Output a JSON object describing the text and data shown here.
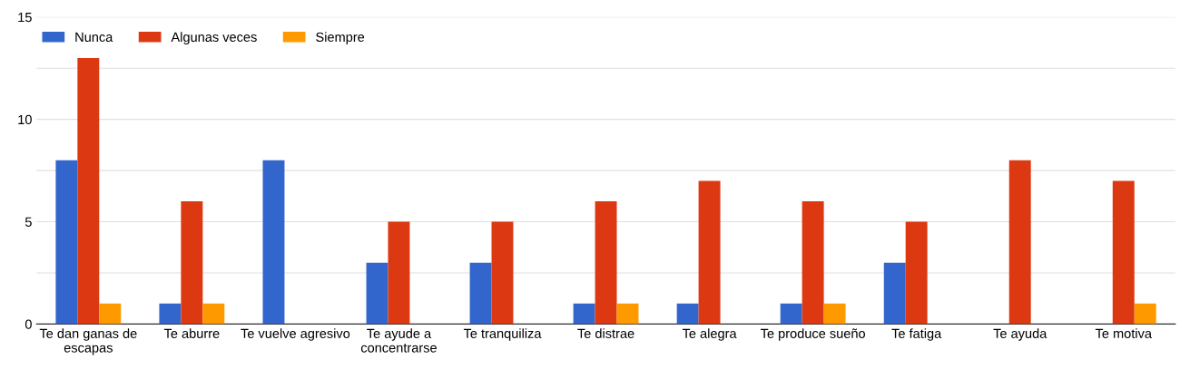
{
  "chart_data": {
    "type": "bar",
    "categories": [
      "Te dan ganas de\nescapas",
      "Te aburre",
      "Te vuelve agresivo",
      "Te ayude a\nconcentrarse",
      "Te tranquiliza",
      "Te distrae",
      "Te alegra",
      "Te produce sueño",
      "Te fatiga",
      "Te ayuda",
      "Te motiva"
    ],
    "series": [
      {
        "name": "Nunca",
        "color": "#3366cc",
        "values": [
          8,
          1,
          8,
          3,
          3,
          1,
          1,
          1,
          3,
          0,
          0
        ]
      },
      {
        "name": "Algunas veces",
        "color": "#dc3912",
        "values": [
          13,
          6,
          0,
          5,
          5,
          6,
          7,
          6,
          5,
          8,
          7
        ]
      },
      {
        "name": "Siempre",
        "color": "#ff9900",
        "values": [
          1,
          1,
          0,
          0,
          0,
          1,
          0,
          1,
          0,
          0,
          1
        ]
      }
    ],
    "ylim": [
      0,
      15
    ],
    "yticks": [
      0,
      {
        "value": 2.5,
        "label": null
      },
      5,
      {
        "value": 7.5,
        "label": null
      },
      10,
      {
        "value": 12.5,
        "label": null
      },
      15
    ],
    "grid": "y",
    "legend": "top left"
  }
}
